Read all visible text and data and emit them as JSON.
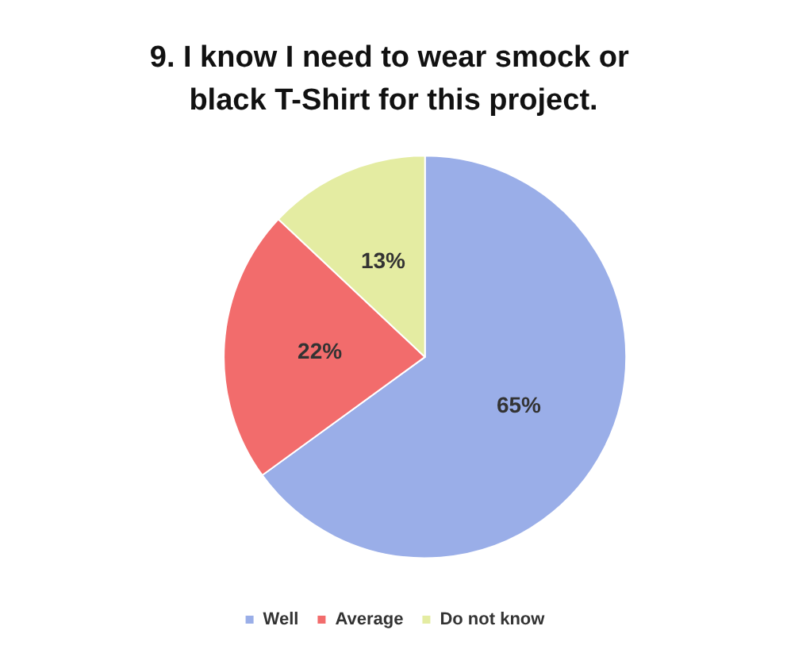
{
  "chart_data": {
    "type": "pie",
    "title": "9. I know I need to wear smock or black T-Shirt for this project.",
    "categories": [
      "Well",
      "Average",
      "Do not know"
    ],
    "values": [
      65,
      22,
      13
    ],
    "colors": [
      "#9aaee8",
      "#f26c6c",
      "#e4eca2"
    ],
    "value_labels": [
      "65%",
      "22%",
      "13%"
    ],
    "legend": "bottom"
  }
}
